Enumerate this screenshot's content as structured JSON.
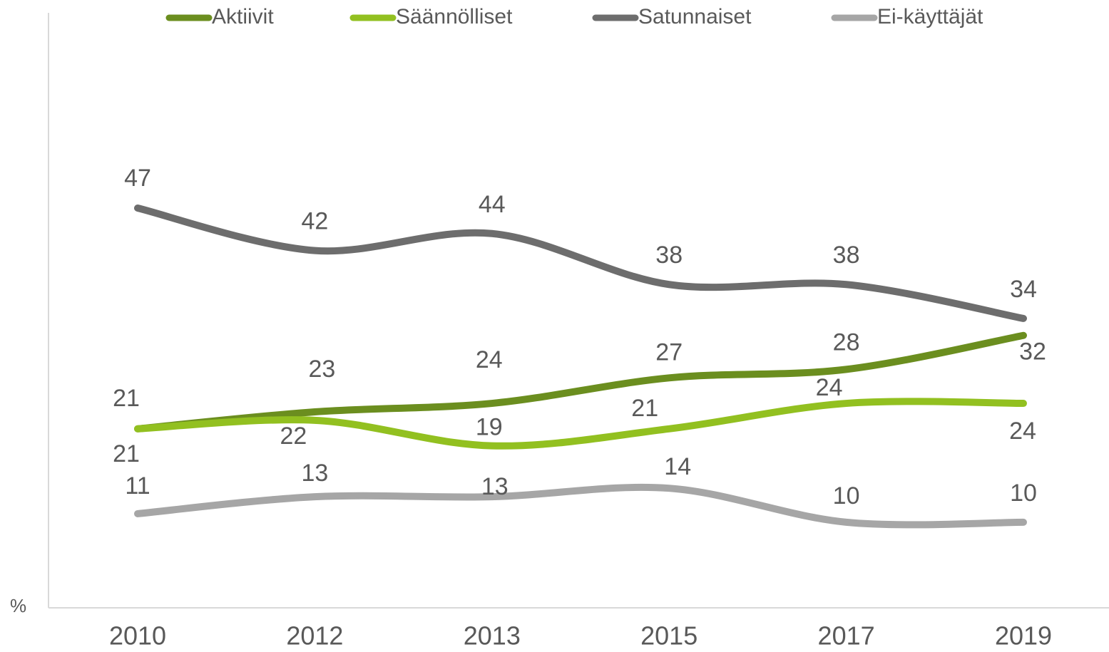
{
  "chart_data": {
    "type": "line",
    "y_label": "%",
    "categories": [
      "2010",
      "2012",
      "2013",
      "2015",
      "2017",
      "2019"
    ],
    "series": [
      {
        "name": "Aktiivit",
        "color": "#6b8e1f",
        "values": [
          21,
          23,
          24,
          27,
          28,
          32
        ]
      },
      {
        "name": "Säännölliset",
        "color": "#92c020",
        "values": [
          21,
          22,
          19,
          21,
          24,
          24
        ]
      },
      {
        "name": "Satunnaiset",
        "color": "#6d6d6d",
        "values": [
          47,
          42,
          44,
          38,
          38,
          34
        ]
      },
      {
        "name": "Ei-käyttäjät",
        "color": "#a6a6a6",
        "values": [
          11,
          13,
          13,
          14,
          10,
          10
        ]
      }
    ],
    "ylim": [
      0,
      70
    ]
  }
}
